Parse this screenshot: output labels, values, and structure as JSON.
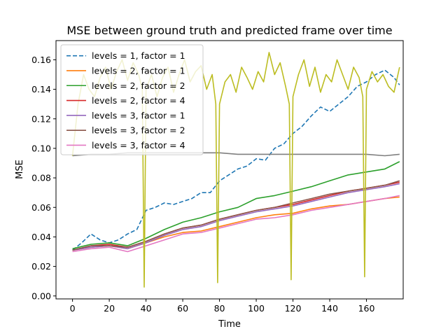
{
  "chart_data": {
    "type": "line",
    "title": "MSE between ground truth and predicted frame over time",
    "xlabel": "Time",
    "ylabel": "MSE",
    "xlim": [
      -9,
      180
    ],
    "ylim": [
      -0.002,
      0.173
    ],
    "x_ticks": [
      0,
      20,
      40,
      60,
      80,
      100,
      120,
      140,
      160
    ],
    "y_ticks": [
      0.0,
      0.02,
      0.04,
      0.06,
      0.08,
      0.1,
      0.12,
      0.14,
      0.16
    ],
    "y_tick_labels": [
      "0.00",
      "0.02",
      "0.04",
      "0.06",
      "0.08",
      "0.10",
      "0.12",
      "0.14",
      "0.16"
    ],
    "grid": false,
    "legend_position": "top-left",
    "legend": [
      {
        "label": "levels = 1, factor = 1",
        "color": "#1f77b4",
        "dash": true
      },
      {
        "label": "levels = 2, factor = 1",
        "color": "#ff7f0e",
        "dash": false
      },
      {
        "label": "levels = 2, factor = 2",
        "color": "#2ca02c",
        "dash": false
      },
      {
        "label": "levels = 2, factor = 4",
        "color": "#d62728",
        "dash": false
      },
      {
        "label": "levels = 3, factor = 1",
        "color": "#9467bd",
        "dash": false
      },
      {
        "label": "levels = 3, factor = 2",
        "color": "#8c564b",
        "dash": false
      },
      {
        "label": "levels = 3, factor = 4",
        "color": "#e377c2",
        "dash": false
      }
    ],
    "series": [
      {
        "name": "levels = 1, factor = 1",
        "color": "#1f77b4",
        "dash": true,
        "x": [
          0,
          5,
          10,
          15,
          20,
          25,
          30,
          35,
          40,
          45,
          50,
          55,
          60,
          65,
          70,
          75,
          80,
          85,
          90,
          95,
          100,
          105,
          110,
          115,
          120,
          125,
          130,
          135,
          140,
          145,
          150,
          155,
          160,
          165,
          170,
          175,
          178
        ],
        "y": [
          0.031,
          0.036,
          0.042,
          0.038,
          0.036,
          0.038,
          0.042,
          0.045,
          0.058,
          0.06,
          0.063,
          0.062,
          0.064,
          0.066,
          0.07,
          0.07,
          0.078,
          0.082,
          0.086,
          0.088,
          0.093,
          0.092,
          0.1,
          0.103,
          0.11,
          0.115,
          0.122,
          0.128,
          0.125,
          0.13,
          0.135,
          0.142,
          0.145,
          0.15,
          0.153,
          0.148,
          0.143
        ]
      },
      {
        "name": "levels = 2, factor = 1",
        "color": "#ff7f0e",
        "dash": false,
        "x": [
          0,
          10,
          20,
          30,
          40,
          50,
          60,
          70,
          80,
          90,
          100,
          110,
          120,
          130,
          140,
          150,
          160,
          170,
          178
        ],
        "y": [
          0.031,
          0.033,
          0.034,
          0.032,
          0.036,
          0.04,
          0.043,
          0.044,
          0.047,
          0.05,
          0.053,
          0.055,
          0.056,
          0.059,
          0.061,
          0.062,
          0.064,
          0.066,
          0.067
        ]
      },
      {
        "name": "levels = 2, factor = 2",
        "color": "#2ca02c",
        "dash": false,
        "x": [
          0,
          10,
          20,
          30,
          40,
          50,
          60,
          70,
          80,
          90,
          100,
          110,
          120,
          130,
          140,
          150,
          160,
          170,
          178
        ],
        "y": [
          0.032,
          0.035,
          0.036,
          0.034,
          0.039,
          0.045,
          0.05,
          0.053,
          0.057,
          0.06,
          0.066,
          0.068,
          0.071,
          0.074,
          0.078,
          0.082,
          0.084,
          0.086,
          0.091
        ]
      },
      {
        "name": "levels = 2, factor = 4",
        "color": "#d62728",
        "dash": false,
        "x": [
          0,
          10,
          20,
          30,
          40,
          50,
          60,
          70,
          80,
          90,
          100,
          110,
          120,
          130,
          140,
          150,
          160,
          170,
          178
        ],
        "y": [
          0.031,
          0.034,
          0.035,
          0.033,
          0.037,
          0.042,
          0.046,
          0.048,
          0.052,
          0.055,
          0.058,
          0.06,
          0.062,
          0.065,
          0.068,
          0.071,
          0.073,
          0.075,
          0.077
        ]
      },
      {
        "name": "levels = 3, factor = 1",
        "color": "#9467bd",
        "dash": false,
        "x": [
          0,
          10,
          20,
          30,
          40,
          50,
          60,
          70,
          80,
          90,
          100,
          110,
          120,
          130,
          140,
          150,
          160,
          170,
          178
        ],
        "y": [
          0.031,
          0.033,
          0.034,
          0.032,
          0.036,
          0.041,
          0.045,
          0.047,
          0.051,
          0.054,
          0.057,
          0.059,
          0.061,
          0.064,
          0.067,
          0.07,
          0.072,
          0.074,
          0.076
        ]
      },
      {
        "name": "levels = 3, factor = 2",
        "color": "#8c564b",
        "dash": false,
        "x": [
          0,
          10,
          20,
          30,
          40,
          50,
          60,
          70,
          80,
          90,
          100,
          110,
          120,
          130,
          140,
          150,
          160,
          170,
          178
        ],
        "y": [
          0.031,
          0.034,
          0.034,
          0.033,
          0.037,
          0.042,
          0.046,
          0.048,
          0.052,
          0.055,
          0.058,
          0.06,
          0.063,
          0.066,
          0.069,
          0.071,
          0.073,
          0.075,
          0.078
        ]
      },
      {
        "name": "levels = 3, factor = 4",
        "color": "#e377c2",
        "dash": false,
        "x": [
          0,
          10,
          20,
          30,
          40,
          50,
          60,
          70,
          80,
          90,
          100,
          110,
          120,
          130,
          140,
          150,
          160,
          170,
          178
        ],
        "y": [
          0.03,
          0.032,
          0.033,
          0.03,
          0.034,
          0.038,
          0.042,
          0.043,
          0.046,
          0.049,
          0.052,
          0.053,
          0.055,
          0.058,
          0.06,
          0.062,
          0.064,
          0.066,
          0.068
        ]
      },
      {
        "color": "#7f7f7f",
        "dash": false,
        "x": [
          0,
          10,
          20,
          30,
          40,
          50,
          60,
          70,
          80,
          90,
          100,
          110,
          120,
          130,
          140,
          150,
          160,
          170,
          178
        ],
        "y": [
          0.095,
          0.096,
          0.096,
          0.097,
          0.097,
          0.097,
          0.097,
          0.097,
          0.097,
          0.096,
          0.096,
          0.096,
          0.096,
          0.096,
          0.096,
          0.096,
          0.096,
          0.095,
          0.096
        ]
      },
      {
        "color": "#bcbd22",
        "dash": false,
        "x": [
          0,
          3,
          6,
          9,
          12,
          15,
          18,
          21,
          24,
          27,
          30,
          33,
          36,
          38,
          39,
          40,
          43,
          46,
          49,
          52,
          55,
          58,
          61,
          64,
          67,
          70,
          73,
          76,
          78,
          79,
          80,
          83,
          86,
          89,
          92,
          95,
          98,
          101,
          104,
          107,
          110,
          113,
          116,
          118,
          119,
          120,
          123,
          126,
          129,
          132,
          135,
          138,
          141,
          144,
          147,
          150,
          153,
          156,
          158,
          159,
          160,
          163,
          166,
          169,
          172,
          175,
          178
        ],
        "y": [
          0.095,
          0.13,
          0.15,
          0.14,
          0.135,
          0.148,
          0.155,
          0.14,
          0.152,
          0.16,
          0.146,
          0.158,
          0.15,
          0.14,
          0.006,
          0.14,
          0.15,
          0.135,
          0.148,
          0.155,
          0.138,
          0.15,
          0.16,
          0.145,
          0.152,
          0.156,
          0.14,
          0.15,
          0.13,
          0.009,
          0.13,
          0.145,
          0.15,
          0.138,
          0.155,
          0.148,
          0.14,
          0.152,
          0.145,
          0.165,
          0.15,
          0.158,
          0.142,
          0.13,
          0.011,
          0.135,
          0.15,
          0.16,
          0.142,
          0.155,
          0.138,
          0.15,
          0.145,
          0.16,
          0.15,
          0.14,
          0.155,
          0.148,
          0.135,
          0.013,
          0.14,
          0.152,
          0.145,
          0.15,
          0.142,
          0.138,
          0.155
        ]
      }
    ]
  }
}
